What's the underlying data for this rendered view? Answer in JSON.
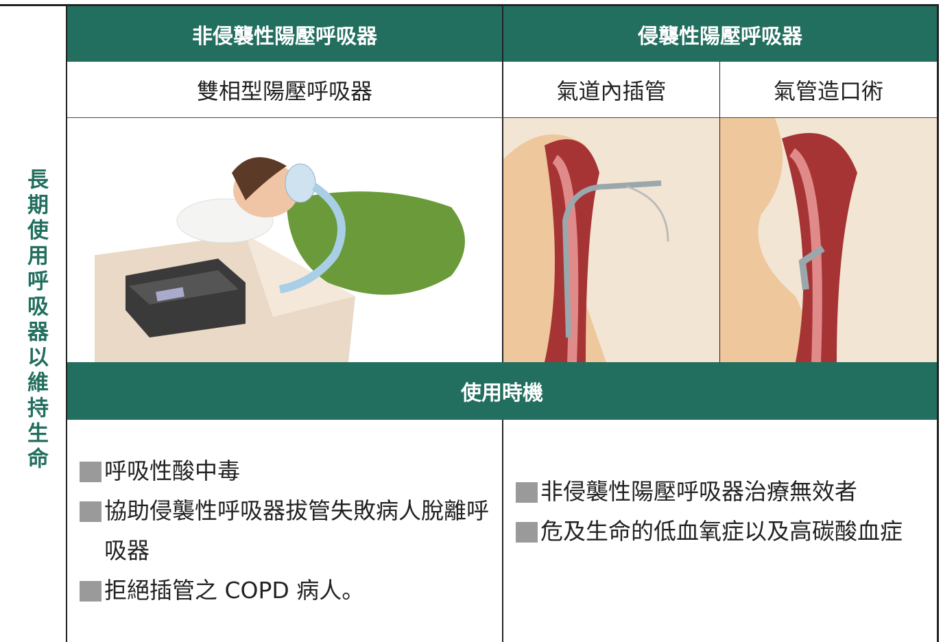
{
  "side_label": "長期使用呼吸器以維持生命",
  "header": {
    "non_invasive": "非侵襲性陽壓呼吸器",
    "invasive": "侵襲性陽壓呼吸器"
  },
  "subheaders": [
    "雙相型陽壓呼吸器",
    "氣道內插管",
    "氣管造口術"
  ],
  "section_title": "使用時機",
  "indications": {
    "non_invasive": [
      "呼吸性酸中毒",
      "協助侵襲性呼吸器拔管失敗病人脫離呼吸器",
      "拒絕插管之 COPD 病人。"
    ],
    "invasive": [
      "非侵襲性陽壓呼吸器治療無效者",
      "危及生命的低血氧症以及高碳酸血症"
    ]
  }
}
